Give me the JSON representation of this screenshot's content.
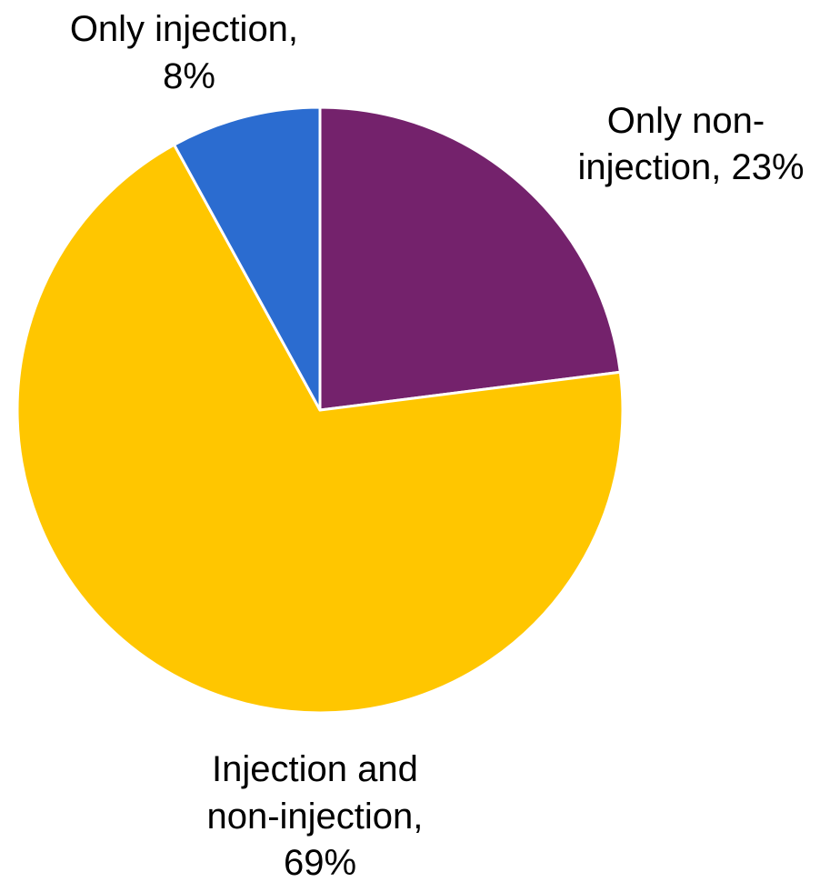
{
  "chart_data": {
    "type": "pie",
    "title": "",
    "slices": [
      {
        "label": "Only non-injection",
        "value": 23,
        "label_lines": [
          "Only non-",
          "injection, 23%"
        ],
        "color": "#74226C"
      },
      {
        "label": "Injection and non-injection",
        "value": 69,
        "label_lines": [
          "Injection and",
          "non-injection,",
          "69%"
        ],
        "color": "#FFC600"
      },
      {
        "label": "Only injection",
        "value": 8,
        "label_lines": [
          "Only injection,",
          "8%"
        ],
        "color": "#2B6CD0"
      }
    ],
    "start_angle": "12 o'clock",
    "direction": "clockwise",
    "legend": "none"
  }
}
